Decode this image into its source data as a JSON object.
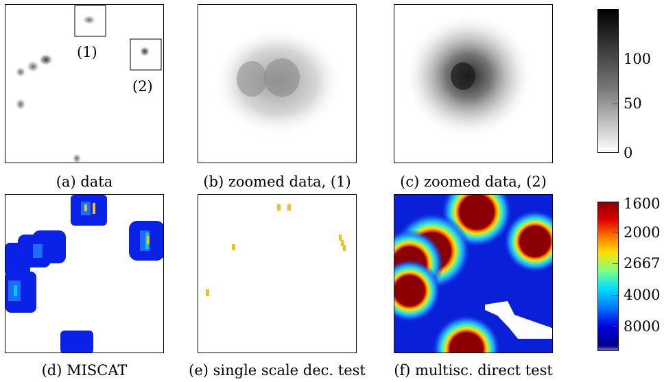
{
  "figure": {
    "panels": [
      {
        "id": "a",
        "caption": "(a) data"
      },
      {
        "id": "b",
        "caption": "(b) zoomed data, (1)"
      },
      {
        "id": "c",
        "caption": "(c) zoomed data, (2)"
      },
      {
        "id": "d",
        "caption": "(d) MISCAT"
      },
      {
        "id": "e",
        "caption": "(e) single scale dec. test"
      },
      {
        "id": "f",
        "caption": "(f) multisc. direct test"
      }
    ],
    "markers": {
      "one": "(1)",
      "two": "(2)"
    },
    "gray_colorbar": {
      "ticks": [
        "100",
        "50",
        "0"
      ]
    },
    "jet_colorbar": {
      "ticks": [
        "1600",
        "2000",
        "2667",
        "4000",
        "8000"
      ]
    },
    "colors": {
      "detect": "#f2c21b",
      "dark_red": "#8b0000",
      "blue": "#0000cd",
      "cyan": "#00ccee"
    }
  }
}
